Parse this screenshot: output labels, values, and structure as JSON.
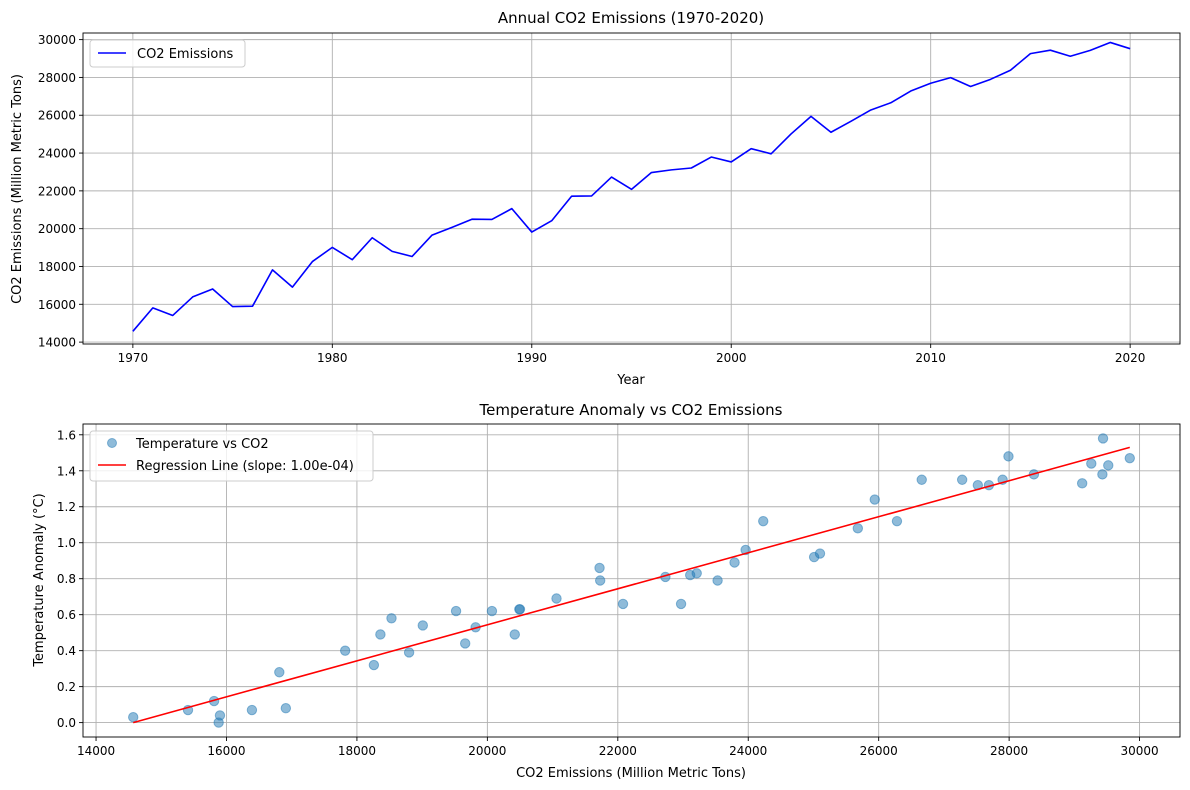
{
  "chart_data": [
    {
      "type": "line",
      "title": "Annual CO2 Emissions (1970-2020)",
      "xlabel": "Year",
      "ylabel": "CO2 Emissions (Million Metric Tons)",
      "xlim": [
        1967.5,
        2022.5
      ],
      "ylim": [
        13900,
        30350
      ],
      "xticks": [
        1970,
        1980,
        1990,
        2000,
        2010,
        2020
      ],
      "yticks": [
        14000,
        16000,
        18000,
        20000,
        22000,
        24000,
        26000,
        28000,
        30000
      ],
      "grid": true,
      "legend_position": "upper-left",
      "series": [
        {
          "name": "CO2 Emissions",
          "color": "#0000ff",
          "x": [
            1970,
            1971,
            1972,
            1973,
            1974,
            1975,
            1976,
            1977,
            1978,
            1979,
            1980,
            1981,
            1982,
            1983,
            1984,
            1985,
            1986,
            1987,
            1988,
            1989,
            1990,
            1991,
            1992,
            1993,
            1994,
            1995,
            1996,
            1997,
            1998,
            1999,
            2000,
            2001,
            2002,
            2003,
            2004,
            2005,
            2006,
            2007,
            2008,
            2009,
            2010,
            2011,
            2012,
            2013,
            2014,
            2015,
            2016,
            2017,
            2018,
            2019,
            2020
          ],
          "y": [
            14570,
            15810,
            15410,
            16390,
            16810,
            15880,
            15900,
            17820,
            16910,
            18260,
            19010,
            18360,
            19520,
            18800,
            18530,
            19660,
            20070,
            20500,
            20490,
            21060,
            19820,
            20420,
            21720,
            21730,
            22730,
            22080,
            22970,
            23110,
            23210,
            23790,
            23530,
            24230,
            23960,
            25010,
            25940,
            25100,
            25680,
            26280,
            26660,
            27280,
            27690,
            27990,
            27520,
            27900,
            28380,
            29260,
            29440,
            29120,
            29430,
            29850,
            29520
          ]
        }
      ]
    },
    {
      "type": "scatter",
      "title": "Temperature Anomaly vs CO2 Emissions",
      "xlabel": "CO2 Emissions (Million Metric Tons)",
      "ylabel": "Temperature Anomaly (°C)",
      "xlim": [
        13800,
        30620
      ],
      "ylim": [
        -0.08,
        1.66
      ],
      "xticks": [
        14000,
        16000,
        18000,
        20000,
        22000,
        24000,
        26000,
        28000,
        30000
      ],
      "yticks": [
        0.0,
        0.2,
        0.4,
        0.6,
        0.8,
        1.0,
        1.2,
        1.4,
        1.6
      ],
      "ytick_labels": [
        "0.0",
        "0.2",
        "0.4",
        "0.6",
        "0.8",
        "1.0",
        "1.2",
        "1.4",
        "1.6"
      ],
      "grid": true,
      "legend_position": "upper-left",
      "series": [
        {
          "name": "Temperature vs CO2",
          "color": "#1f77b4",
          "x": [
            14570,
            15810,
            15410,
            16390,
            16810,
            15880,
            15900,
            17820,
            16910,
            18260,
            19010,
            18360,
            19520,
            18800,
            18530,
            19660,
            20070,
            20500,
            20490,
            21060,
            19820,
            20420,
            21720,
            21730,
            22730,
            22080,
            22970,
            23110,
            23210,
            23790,
            23530,
            24230,
            23960,
            25010,
            25940,
            25100,
            25680,
            26280,
            26660,
            27280,
            27690,
            27990,
            27520,
            27900,
            28380,
            29260,
            29440,
            29120,
            29430,
            29850,
            29520
          ],
          "y": [
            0.03,
            0.12,
            0.07,
            0.07,
            0.28,
            0.0,
            0.04,
            0.4,
            0.08,
            0.32,
            0.54,
            0.49,
            0.62,
            0.39,
            0.58,
            0.44,
            0.62,
            0.63,
            0.63,
            0.69,
            0.53,
            0.49,
            0.86,
            0.79,
            0.81,
            0.66,
            0.66,
            0.82,
            0.83,
            0.89,
            0.79,
            1.12,
            0.96,
            0.92,
            1.24,
            0.94,
            1.08,
            1.12,
            1.35,
            1.35,
            1.32,
            1.48,
            1.32,
            1.35,
            1.38,
            1.44,
            1.58,
            1.33,
            1.38,
            1.47,
            1.43
          ]
        },
        {
          "name": "Regression Line (slope: 1.00e-04)",
          "color": "#ff0000",
          "x": [
            14570,
            29850
          ],
          "y": [
            0.0,
            1.53
          ]
        }
      ]
    }
  ]
}
